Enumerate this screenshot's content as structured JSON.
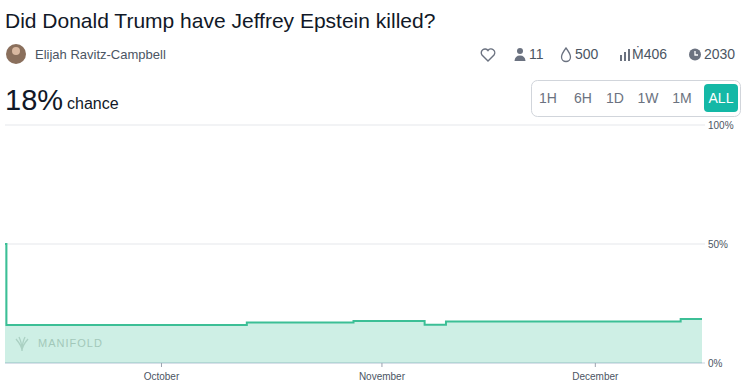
{
  "header": {
    "title": "Did Donald Trump have Jeffrey Epstein killed?",
    "author": "Elijah Ravitz-Campbell",
    "stats": [
      "11",
      "500",
      "Ṁ406",
      "2030"
    ],
    "probability": "18%",
    "probability_caption": "chance",
    "time_ranges": [
      "1H",
      "6H",
      "1D",
      "1W",
      "1M",
      "ALL"
    ],
    "selected_range": "ALL",
    "brand": "MANIFOLD"
  },
  "chart_data": {
    "type": "line",
    "x": [
      252,
      252.2,
      286,
      301,
      311,
      314,
      347,
      350
    ],
    "values": [
      50,
      16,
      17,
      17.6,
      16.1,
      17.4,
      18.5,
      18.5
    ],
    "color": "#3cbf96",
    "line_style": "step",
    "xlim": [
      252,
      350
    ],
    "xticks": [
      {
        "value": 274,
        "label": "October"
      },
      {
        "value": 305,
        "label": "November"
      },
      {
        "value": 335,
        "label": "December"
      }
    ],
    "ylim": [
      0,
      100
    ],
    "yticks": [
      {
        "value": 0,
        "label": "0%"
      },
      {
        "value": 50,
        "label": "50%"
      },
      {
        "value": 100,
        "label": "100%"
      }
    ],
    "grid": true
  }
}
